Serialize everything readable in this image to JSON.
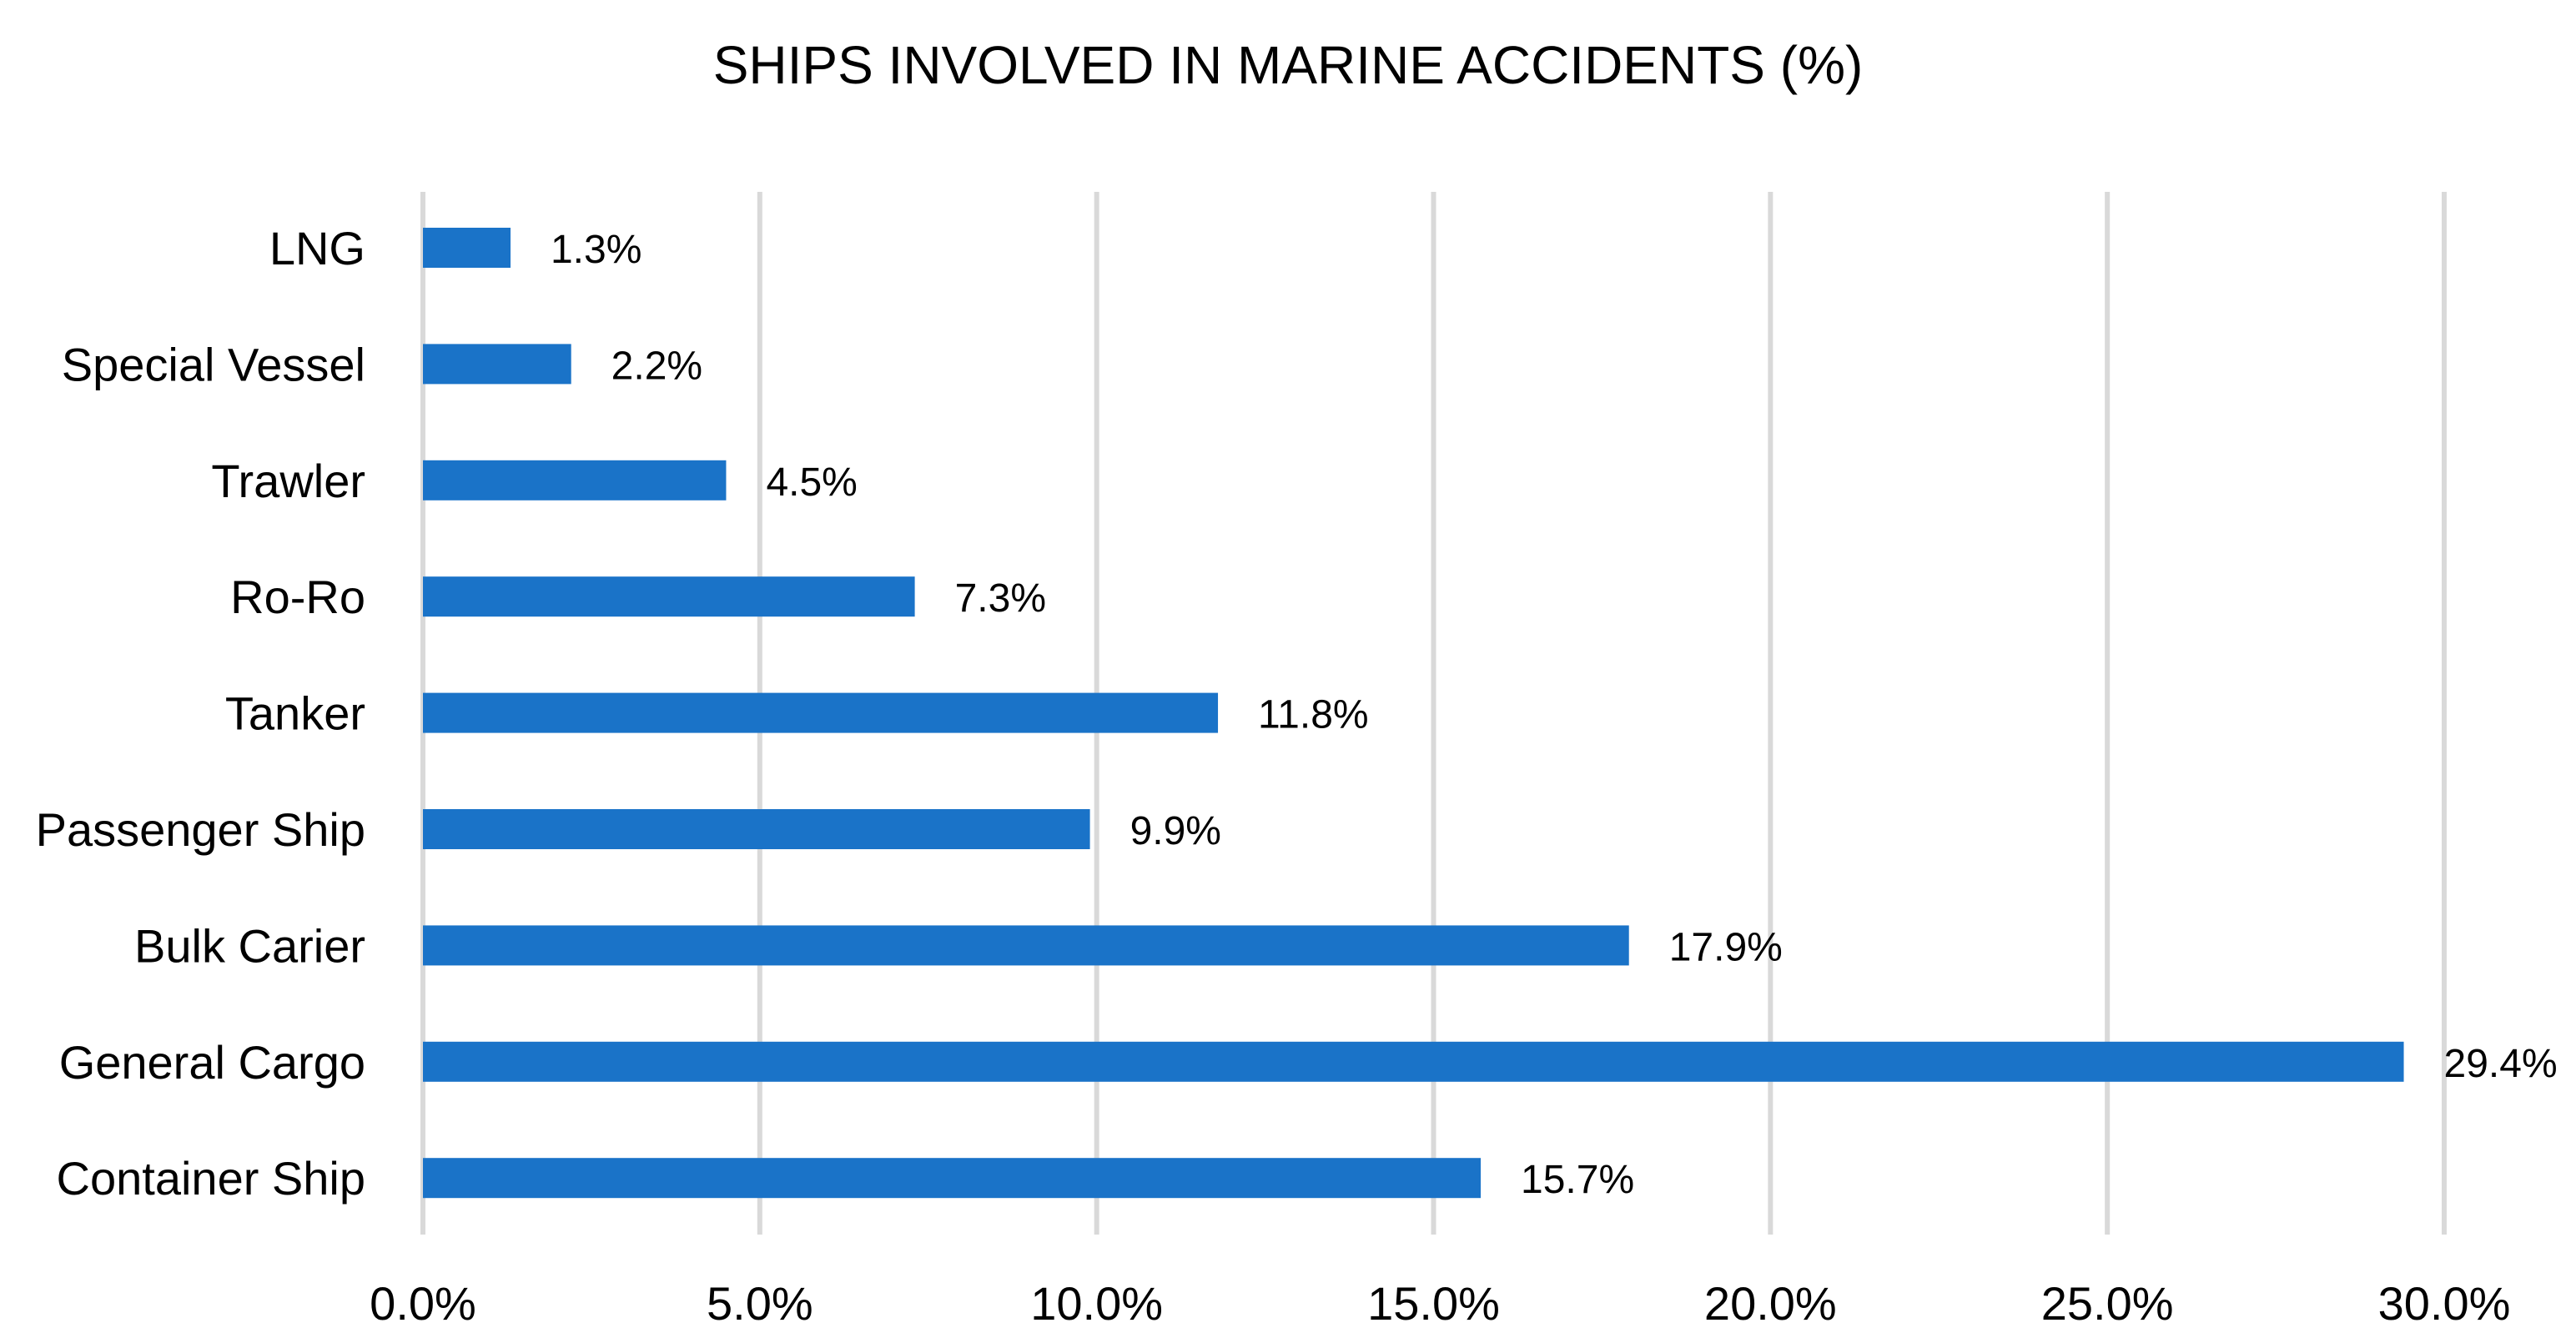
{
  "chart_data": {
    "type": "bar",
    "orientation": "horizontal",
    "title": "SHIPS INVOLVED IN MARINE ACCIDENTS (%)",
    "xlabel": "",
    "ylabel": "",
    "categories": [
      "LNG",
      "Special Vessel",
      "Trawler",
      "Ro-Ro",
      "Tanker",
      "Passenger Ship",
      "Bulk Carier",
      "General Cargo",
      "Container Ship"
    ],
    "values": [
      1.3,
      2.2,
      4.5,
      7.3,
      11.8,
      9.9,
      17.9,
      29.4,
      15.7
    ],
    "value_labels": [
      "1.3%",
      "2.2%",
      "4.5%",
      "7.3%",
      "11.8%",
      "9.9%",
      "17.9%",
      "29.4%",
      "15.7%"
    ],
    "xlim": [
      0,
      30
    ],
    "xticks": [
      0,
      5,
      10,
      15,
      20,
      25,
      30
    ],
    "xtick_labels": [
      "0.0%",
      "5.0%",
      "10.0%",
      "15.0%",
      "20.0%",
      "25.0%",
      "30.0%"
    ],
    "grid": "vertical",
    "legend": "none",
    "colors": {
      "bar": "#1a73c8",
      "grid": "#d9d9d9",
      "text": "#000000"
    }
  }
}
